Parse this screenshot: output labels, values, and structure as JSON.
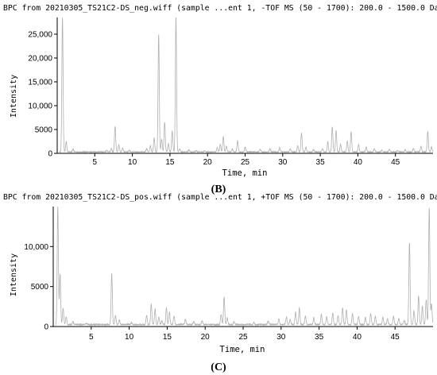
{
  "chart_data": [
    {
      "type": "line",
      "title": "BPC from 20210305_TS21C2-DS_neg.wiff (sample ...ent 1, -TOF MS (50 - 1700): 200.0 - 1500.0 Da",
      "xlabel": "Time, min",
      "ylabel": "Intensity",
      "panel_label": "(B)",
      "xlim": [
        0,
        50
      ],
      "ylim": [
        0,
        28500
      ],
      "xticks": [
        5,
        10,
        15,
        20,
        25,
        30,
        35,
        40,
        45
      ],
      "xtick_labels": [
        "5",
        "10",
        "15",
        "20",
        "25",
        "30",
        "35",
        "40",
        "45"
      ],
      "yticks": [
        0,
        5000,
        10000,
        15000,
        20000,
        25000
      ],
      "ytick_labels": [
        "0",
        "5000",
        "10,000",
        "15,000",
        "20,000",
        "25,000"
      ],
      "grid": false,
      "color": "#b0b0b0",
      "series": [
        {
          "baseline": 300,
          "peaks": [
            {
              "x": 0.7,
              "y": 28500
            },
            {
              "x": 1.2,
              "y": 2500
            },
            {
              "x": 2.1,
              "y": 900
            },
            {
              "x": 6.6,
              "y": 600
            },
            {
              "x": 7.2,
              "y": 1000
            },
            {
              "x": 7.7,
              "y": 5700
            },
            {
              "x": 8.2,
              "y": 1800
            },
            {
              "x": 8.7,
              "y": 1100
            },
            {
              "x": 9.6,
              "y": 600
            },
            {
              "x": 11.9,
              "y": 1000
            },
            {
              "x": 12.4,
              "y": 1600
            },
            {
              "x": 12.9,
              "y": 3200
            },
            {
              "x": 13.5,
              "y": 25000
            },
            {
              "x": 13.9,
              "y": 3000
            },
            {
              "x": 14.3,
              "y": 6500
            },
            {
              "x": 14.8,
              "y": 2000
            },
            {
              "x": 15.3,
              "y": 4700
            },
            {
              "x": 15.8,
              "y": 28500
            },
            {
              "x": 16.3,
              "y": 900
            },
            {
              "x": 17.5,
              "y": 700
            },
            {
              "x": 18.5,
              "y": 600
            },
            {
              "x": 19.6,
              "y": 500
            },
            {
              "x": 21.3,
              "y": 1200
            },
            {
              "x": 21.7,
              "y": 1900
            },
            {
              "x": 22.1,
              "y": 3500
            },
            {
              "x": 22.5,
              "y": 1500
            },
            {
              "x": 23.3,
              "y": 900
            },
            {
              "x": 24.0,
              "y": 2600
            },
            {
              "x": 25.0,
              "y": 1300
            },
            {
              "x": 27.0,
              "y": 800
            },
            {
              "x": 28.3,
              "y": 1000
            },
            {
              "x": 29.6,
              "y": 1200
            },
            {
              "x": 31.0,
              "y": 900
            },
            {
              "x": 32.0,
              "y": 1600
            },
            {
              "x": 32.5,
              "y": 4300
            },
            {
              "x": 33.1,
              "y": 1300
            },
            {
              "x": 34.1,
              "y": 800
            },
            {
              "x": 35.3,
              "y": 1000
            },
            {
              "x": 36.0,
              "y": 2400
            },
            {
              "x": 36.6,
              "y": 5600
            },
            {
              "x": 37.1,
              "y": 4800
            },
            {
              "x": 37.7,
              "y": 1900
            },
            {
              "x": 38.6,
              "y": 2600
            },
            {
              "x": 39.1,
              "y": 4500
            },
            {
              "x": 40.1,
              "y": 1800
            },
            {
              "x": 41.1,
              "y": 1300
            },
            {
              "x": 42.2,
              "y": 1000
            },
            {
              "x": 43.2,
              "y": 700
            },
            {
              "x": 44.2,
              "y": 900
            },
            {
              "x": 45.3,
              "y": 600
            },
            {
              "x": 46.3,
              "y": 800
            },
            {
              "x": 47.4,
              "y": 1000
            },
            {
              "x": 48.4,
              "y": 1500
            },
            {
              "x": 49.3,
              "y": 4600
            },
            {
              "x": 49.8,
              "y": 1300
            }
          ]
        }
      ]
    },
    {
      "type": "line",
      "title": "BPC from 20210305_TS21C2-DS_pos.wiff (sample ...ent 1, +TOF MS (50 - 1700): 200.0 - 1500.0 Da",
      "xlabel": "Time, min",
      "ylabel": "Intensity",
      "panel_label": "(C)",
      "xlim": [
        0,
        50
      ],
      "ylim": [
        0,
        15000
      ],
      "xticks": [
        5,
        10,
        15,
        20,
        25,
        30,
        35,
        40,
        45
      ],
      "xtick_labels": [
        "5",
        "10",
        "15",
        "20",
        "25",
        "30",
        "35",
        "40",
        "45"
      ],
      "yticks": [
        0,
        5000,
        10000
      ],
      "ytick_labels": [
        "0",
        "5000",
        "10,000"
      ],
      "grid": false,
      "color": "#b0b0b0",
      "series": [
        {
          "baseline": 250,
          "peaks": [
            {
              "x": 0.6,
              "y": 15000
            },
            {
              "x": 0.9,
              "y": 6500
            },
            {
              "x": 1.3,
              "y": 2300
            },
            {
              "x": 1.7,
              "y": 1200
            },
            {
              "x": 2.6,
              "y": 600
            },
            {
              "x": 4.4,
              "y": 400
            },
            {
              "x": 7.7,
              "y": 6600
            },
            {
              "x": 8.2,
              "y": 1400
            },
            {
              "x": 8.7,
              "y": 800
            },
            {
              "x": 10.3,
              "y": 500
            },
            {
              "x": 12.3,
              "y": 1400
            },
            {
              "x": 12.9,
              "y": 2800
            },
            {
              "x": 13.4,
              "y": 2200
            },
            {
              "x": 13.9,
              "y": 1200
            },
            {
              "x": 14.3,
              "y": 700
            },
            {
              "x": 14.9,
              "y": 2300
            },
            {
              "x": 15.3,
              "y": 1800
            },
            {
              "x": 15.9,
              "y": 1300
            },
            {
              "x": 17.4,
              "y": 900
            },
            {
              "x": 18.5,
              "y": 600
            },
            {
              "x": 19.6,
              "y": 700
            },
            {
              "x": 22.1,
              "y": 1500
            },
            {
              "x": 22.5,
              "y": 3700
            },
            {
              "x": 22.9,
              "y": 1100
            },
            {
              "x": 23.8,
              "y": 600
            },
            {
              "x": 26.4,
              "y": 500
            },
            {
              "x": 28.3,
              "y": 700
            },
            {
              "x": 29.7,
              "y": 1000
            },
            {
              "x": 30.7,
              "y": 1200
            },
            {
              "x": 31.2,
              "y": 900
            },
            {
              "x": 31.9,
              "y": 1800
            },
            {
              "x": 32.4,
              "y": 2300
            },
            {
              "x": 33.2,
              "y": 1300
            },
            {
              "x": 34.3,
              "y": 1100
            },
            {
              "x": 35.3,
              "y": 1500
            },
            {
              "x": 36.0,
              "y": 1200
            },
            {
              "x": 36.8,
              "y": 1700
            },
            {
              "x": 37.5,
              "y": 1400
            },
            {
              "x": 38.1,
              "y": 2300
            },
            {
              "x": 38.6,
              "y": 2100
            },
            {
              "x": 39.4,
              "y": 1600
            },
            {
              "x": 40.2,
              "y": 1300
            },
            {
              "x": 41.1,
              "y": 1100
            },
            {
              "x": 41.8,
              "y": 1600
            },
            {
              "x": 42.4,
              "y": 1300
            },
            {
              "x": 43.4,
              "y": 1200
            },
            {
              "x": 44.0,
              "y": 1000
            },
            {
              "x": 44.8,
              "y": 1300
            },
            {
              "x": 45.5,
              "y": 1000
            },
            {
              "x": 46.2,
              "y": 800
            },
            {
              "x": 46.9,
              "y": 10500
            },
            {
              "x": 47.5,
              "y": 2000
            },
            {
              "x": 48.1,
              "y": 3800
            },
            {
              "x": 48.6,
              "y": 2600
            },
            {
              "x": 49.1,
              "y": 3300
            },
            {
              "x": 49.5,
              "y": 14800
            },
            {
              "x": 49.8,
              "y": 2800
            }
          ]
        }
      ]
    }
  ]
}
